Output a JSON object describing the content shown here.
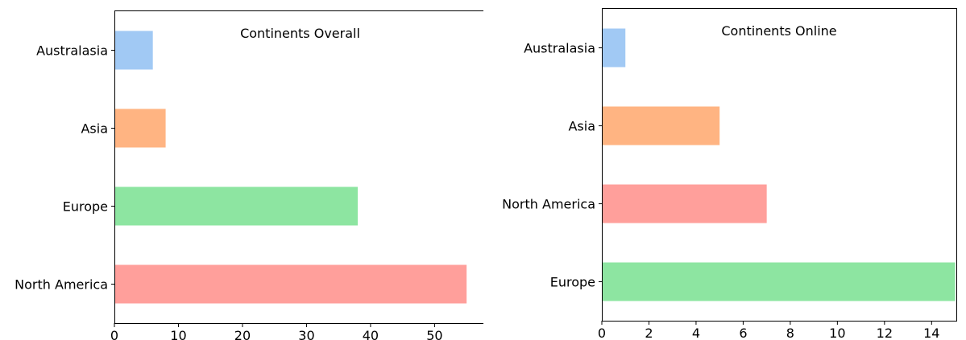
{
  "palette": {
    "Australasia": "#a1c9f4",
    "Asia": "#ffb482",
    "Europe": "#8de5a1",
    "North America": "#ff9f9b"
  },
  "chart_data": [
    {
      "type": "bar",
      "orientation": "horizontal",
      "title": "Continents Overall",
      "categories": [
        "Australasia",
        "Asia",
        "Europe",
        "North America"
      ],
      "values": [
        6,
        8,
        38,
        55
      ],
      "xlim": [
        0,
        58
      ],
      "xticks": [
        0,
        10,
        20,
        30,
        40,
        50
      ],
      "xlabel": "",
      "ylabel": "",
      "grid": false,
      "legend": "none"
    },
    {
      "type": "bar",
      "orientation": "horizontal",
      "title": "Continents Online",
      "categories": [
        "Australasia",
        "Asia",
        "North America",
        "Europe"
      ],
      "values": [
        1,
        5,
        7,
        15
      ],
      "xlim": [
        0,
        15.05
      ],
      "xticks": [
        0,
        2,
        4,
        6,
        8,
        10,
        12,
        14
      ],
      "xlabel": "",
      "ylabel": "",
      "grid": false,
      "legend": "none"
    }
  ]
}
